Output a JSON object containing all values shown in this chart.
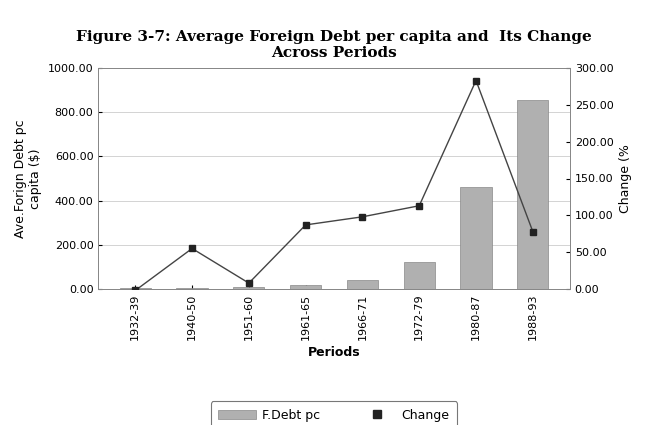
{
  "categories": [
    "1932-39",
    "1940-50",
    "1951-60",
    "1961-65",
    "1966-71",
    "1972-79",
    "1980-87",
    "1988-93"
  ],
  "fdebt_pc": [
    2.5,
    5.0,
    8.0,
    18.0,
    42.0,
    120.0,
    460.0,
    855.0
  ],
  "change_pct": [
    -2.0,
    55.0,
    8.0,
    87.0,
    98.0,
    113.0,
    283.0,
    78.0
  ],
  "title_line1": "Figure 3-7: Average Foreign Debt per capita and  Its Change",
  "title_line2": "Across Periods",
  "xlabel": "Periods",
  "ylabel_left": "Ave.Forign Debt pc\ncapita ($)",
  "ylabel_right": "Change (%",
  "ylim_left": [
    0,
    1000
  ],
  "ylim_right": [
    0,
    300
  ],
  "yticks_left": [
    0,
    200,
    400,
    600,
    800,
    1000
  ],
  "ytick_labels_left": [
    "0.00",
    "200.00",
    "400.00",
    "600.00",
    "800.00",
    "1000.00"
  ],
  "yticks_right": [
    0,
    50,
    100,
    150,
    200,
    250,
    300
  ],
  "ytick_labels_right": [
    "0.00",
    "50.00",
    "100.00",
    "150.00",
    "200.00",
    "250.00",
    "300.00"
  ],
  "bar_color": "#b0b0b0",
  "bar_edge_color": "#888888",
  "line_color": "#444444",
  "marker_style": "s",
  "marker_color": "#222222",
  "marker_size": 5,
  "legend_labels": [
    "F.Debt pc",
    "Change"
  ],
  "title_fontsize": 11,
  "label_fontsize": 9,
  "tick_fontsize": 8,
  "legend_fontsize": 9,
  "bg_color": "#ffffff",
  "plot_bg_color": "#ffffff",
  "grid_color": "#cccccc",
  "bar_width": 0.55
}
